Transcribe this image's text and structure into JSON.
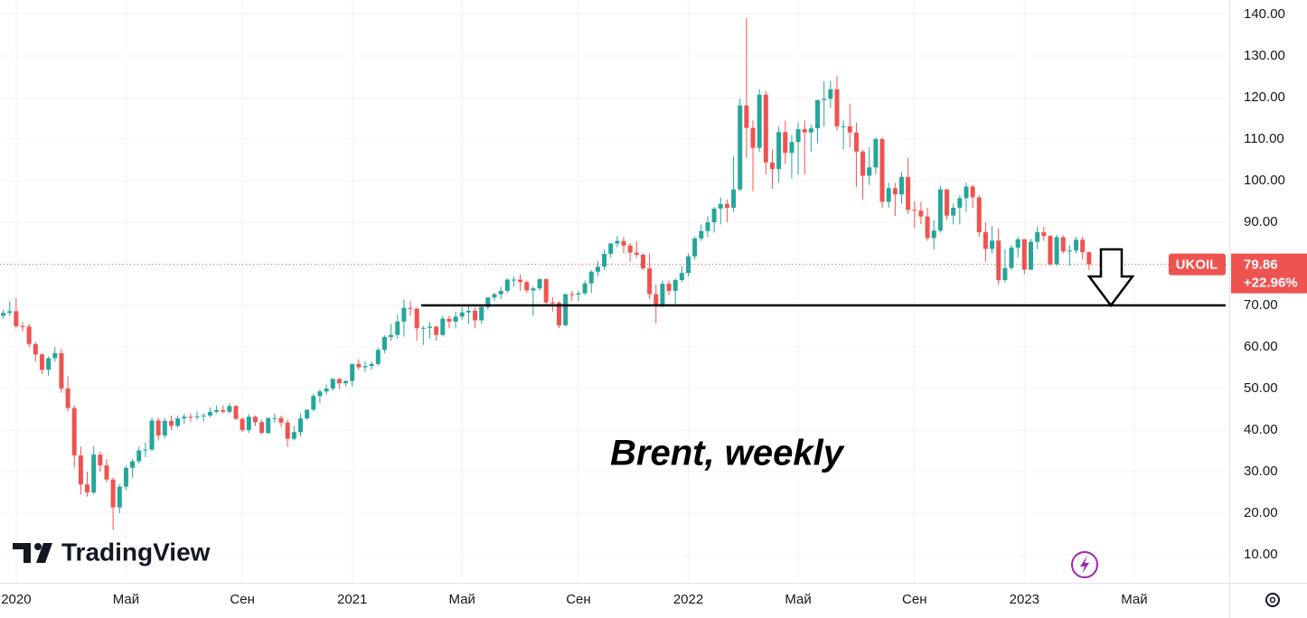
{
  "chart_data": {
    "type": "candlestick",
    "title": "Brent, weekly",
    "brand": "TradingView",
    "symbol": "UKOIL",
    "last_price": 79.86,
    "change_label": "+22.96%",
    "support_level": 70,
    "up_color": "#26a69a",
    "down_color": "#ef5350",
    "grid": true,
    "xlim": [
      -0.5,
      189.7
    ],
    "ylim": [
      3.26,
      143.48
    ],
    "xticks": [
      {
        "value": 2,
        "label": "2020"
      },
      {
        "value": 19,
        "label": "Май"
      },
      {
        "value": 37,
        "label": "Сен"
      },
      {
        "value": 54,
        "label": "2021"
      },
      {
        "value": 71,
        "label": "Май"
      },
      {
        "value": 89,
        "label": "Сен"
      },
      {
        "value": 106,
        "label": "2022"
      },
      {
        "value": 123,
        "label": "Май"
      },
      {
        "value": 141,
        "label": "Сен"
      },
      {
        "value": 158,
        "label": "2023"
      },
      {
        "value": 175,
        "label": "Май"
      }
    ],
    "yticks": [
      {
        "value": 140,
        "label": "140.00"
      },
      {
        "value": 130,
        "label": "130.00"
      },
      {
        "value": 120,
        "label": "120.00"
      },
      {
        "value": 110,
        "label": "110.00"
      },
      {
        "value": 100,
        "label": "100.00"
      },
      {
        "value": 90,
        "label": "90.00"
      },
      {
        "value": 80,
        "label": "80.00"
      },
      {
        "value": 70,
        "label": "70.00"
      },
      {
        "value": 60,
        "label": "60.00"
      },
      {
        "value": 50,
        "label": "50.00"
      },
      {
        "value": 40,
        "label": "40.00"
      },
      {
        "value": 30,
        "label": "30.00"
      },
      {
        "value": 20,
        "label": "20.00"
      },
      {
        "value": 10,
        "label": "10.00"
      }
    ],
    "open": [
      67.5,
      68.2,
      68.6,
      65.0,
      64.9,
      60.7,
      58.2,
      54.5,
      57.3,
      58.5,
      50.0,
      45.3,
      33.9,
      26.9,
      25.0,
      34.1,
      31.5,
      28.1,
      21.4,
      26.4,
      30.9,
      32.5,
      35.1,
      35.3,
      42.3,
      38.7,
      42.2,
      41.0,
      42.8,
      43.2,
      43.1,
      43.3,
      43.5,
      44.4,
      44.8,
      44.4,
      45.8,
      42.7,
      40.0,
      43.2,
      41.9,
      39.3,
      42.9,
      42.9,
      41.8,
      37.9,
      39.5,
      42.8,
      44.9,
      48.2,
      49.3,
      50.0,
      52.3,
      51.3,
      51.8,
      55.9,
      55.1,
      55.4,
      55.9,
      59.3,
      62.4,
      62.9,
      66.1,
      69.4,
      69.2,
      64.5,
      64.6,
      64.9,
      62.9,
      66.8,
      66.1,
      67.3,
      68.3,
      68.7,
      66.4,
      69.6,
      71.9,
      72.7,
      73.5,
      76.2,
      76.2,
      75.6,
      73.6,
      74.1,
      76.3,
      70.7,
      70.6,
      65.2,
      72.7,
      72.6,
      72.9,
      75.3,
      78.1,
      79.3,
      82.4,
      84.9,
      85.5,
      84.4,
      82.7,
      82.2,
      78.9,
      72.7,
      69.9,
      75.2,
      73.5,
      76.1,
      77.8,
      81.8,
      86.1,
      87.9,
      90.0,
      93.3,
      94.4,
      93.5,
      97.9,
      118.1,
      112.7,
      107.9,
      120.7,
      104.4,
      102.8,
      111.7,
      106.7,
      109.3,
      112.4,
      111.6,
      112.6,
      119.4,
      119.7,
      122.0,
      113.1,
      113.1,
      111.6,
      107.0,
      101.2,
      103.2,
      110.0,
      94.9,
      98.2,
      96.7,
      100.9,
      93.0,
      92.8,
      91.4,
      86.2,
      88.0,
      97.9,
      91.6,
      93.5,
      95.8,
      98.6,
      96.0,
      87.6,
      83.6,
      85.6,
      76.1,
      79.0,
      83.9,
      85.9,
      78.6,
      85.3,
      87.6,
      86.7,
      79.9,
      86.4,
      83.0,
      83.2,
      85.8,
      82.8
    ],
    "high": [
      69.0,
      71.0,
      71.8,
      66.0,
      65.5,
      61.0,
      58.5,
      57.8,
      60.0,
      59.5,
      53.0,
      46.0,
      36.0,
      30.0,
      36.0,
      34.8,
      33.0,
      28.5,
      27.0,
      31.5,
      33.0,
      36.0,
      37.0,
      43.0,
      43.0,
      43.0,
      43.5,
      43.5,
      43.9,
      44.0,
      44.5,
      44.0,
      45.5,
      45.9,
      46.0,
      46.5,
      46.0,
      43.0,
      43.9,
      43.5,
      42.5,
      43.0,
      43.9,
      43.5,
      42.5,
      41.0,
      44.0,
      45.0,
      48.8,
      49.8,
      51.0,
      52.5,
      52.5,
      52.0,
      56.0,
      57.0,
      56.5,
      56.5,
      59.8,
      62.8,
      65.5,
      67.7,
      71.4,
      71.0,
      69.5,
      65.0,
      66.0,
      65.0,
      67.5,
      67.5,
      68.5,
      69.5,
      69.8,
      69.5,
      70.0,
      72.0,
      73.0,
      74.5,
      76.5,
      77.0,
      77.5,
      76.0,
      74.5,
      76.5,
      76.5,
      72.0,
      71.0,
      72.8,
      73.5,
      73.5,
      76.0,
      78.5,
      80.7,
      83.5,
      85.0,
      86.7,
      86.5,
      85.0,
      85.5,
      82.5,
      82.5,
      75.0,
      76.0,
      76.0,
      76.5,
      79.5,
      82.5,
      86.5,
      89.5,
      91.5,
      93.7,
      96.0,
      95.5,
      105.8,
      119.8,
      139.1,
      114.5,
      122.0,
      121.5,
      107.5,
      113.0,
      114.5,
      111.0,
      114.0,
      114.5,
      113.5,
      119.5,
      124.0,
      124.0,
      125.2,
      114.5,
      118.5,
      114.0,
      107.5,
      108.0,
      110.5,
      110.5,
      99.5,
      99.5,
      102.0,
      105.5,
      95.0,
      95.0,
      93.5,
      90.5,
      98.8,
      98.0,
      94.5,
      96.5,
      99.5,
      99.0,
      96.5,
      90.0,
      89.0,
      88.5,
      83.5,
      84.5,
      86.5,
      86.0,
      86.0,
      89.0,
      89.0,
      87.0,
      87.0,
      86.9,
      84.5,
      86.5,
      86.5,
      83.0
    ],
    "low": [
      66.8,
      67.5,
      64.5,
      63.8,
      60.0,
      56.5,
      53.5,
      53.0,
      56.5,
      49.0,
      44.5,
      31.0,
      24.5,
      24.0,
      24.5,
      30.0,
      27.5,
      15.98,
      20.0,
      25.5,
      28.5,
      32.0,
      33.5,
      35.0,
      37.5,
      38.0,
      40.0,
      40.5,
      41.5,
      42.0,
      42.5,
      42.0,
      43.0,
      44.0,
      44.0,
      44.0,
      42.5,
      39.5,
      39.3,
      41.0,
      39.0,
      39.0,
      41.8,
      40.6,
      36.0,
      37.5,
      38.5,
      42.5,
      44.5,
      46.5,
      48.5,
      49.5,
      49.8,
      50.5,
      50.5,
      54.5,
      54.0,
      54.5,
      55.5,
      58.5,
      61.5,
      62.0,
      62.5,
      67.5,
      61.5,
      60.5,
      62.0,
      61.5,
      62.5,
      64.5,
      64.5,
      66.5,
      65.5,
      64.5,
      65.5,
      69.0,
      71.0,
      71.5,
      73.0,
      74.5,
      73.5,
      73.0,
      67.5,
      73.5,
      70.0,
      68.5,
      64.5,
      65.0,
      71.0,
      71.0,
      72.5,
      73.0,
      77.0,
      78.5,
      81.5,
      84.0,
      82.5,
      80.5,
      81.5,
      78.5,
      71.5,
      65.7,
      69.5,
      72.5,
      70.0,
      75.5,
      77.0,
      81.0,
      85.5,
      86.5,
      87.5,
      89.5,
      90.0,
      92.5,
      97.5,
      105.5,
      97.5,
      107.0,
      101.5,
      98.0,
      99.5,
      104.0,
      100.5,
      101.5,
      101.5,
      107.0,
      109.0,
      113.0,
      117.5,
      112.0,
      107.5,
      108.0,
      98.5,
      95.5,
      99.0,
      101.5,
      93.5,
      93.5,
      91.5,
      94.5,
      92.0,
      88.5,
      89.5,
      85.5,
      83.5,
      87.5,
      90.5,
      89.5,
      89.5,
      92.5,
      93.5,
      86.5,
      80.5,
      82.5,
      75.0,
      75.5,
      78.5,
      81.5,
      77.5,
      78.5,
      83.5,
      85.5,
      79.5,
      79.5,
      82.5,
      79.5,
      82.5,
      81.0,
      78.5
    ],
    "close": [
      68.2,
      68.6,
      65.0,
      64.9,
      60.7,
      58.2,
      54.5,
      57.3,
      58.5,
      50.0,
      45.3,
      33.9,
      26.9,
      25.0,
      34.1,
      31.5,
      28.1,
      21.4,
      26.4,
      30.9,
      32.5,
      35.1,
      35.3,
      42.3,
      38.7,
      42.2,
      41.0,
      42.8,
      43.2,
      43.1,
      43.3,
      43.5,
      44.4,
      44.8,
      44.4,
      45.8,
      42.7,
      40.0,
      43.2,
      41.9,
      39.3,
      42.9,
      42.9,
      41.8,
      37.9,
      39.5,
      42.8,
      44.9,
      48.2,
      49.3,
      50.0,
      52.3,
      51.3,
      51.8,
      55.9,
      55.1,
      55.4,
      55.9,
      59.3,
      62.4,
      62.9,
      66.1,
      69.4,
      69.2,
      64.5,
      64.6,
      64.9,
      62.9,
      66.8,
      66.1,
      67.3,
      68.3,
      68.7,
      66.4,
      69.6,
      71.9,
      72.7,
      73.5,
      76.2,
      76.2,
      75.6,
      73.6,
      74.1,
      76.3,
      70.7,
      70.6,
      65.2,
      72.7,
      72.6,
      72.9,
      75.3,
      78.1,
      79.3,
      82.4,
      84.9,
      85.5,
      84.4,
      82.7,
      82.2,
      78.9,
      72.7,
      69.9,
      75.2,
      73.5,
      76.1,
      77.8,
      81.8,
      86.1,
      87.9,
      90.0,
      93.3,
      94.4,
      93.5,
      97.9,
      118.1,
      112.7,
      107.9,
      120.7,
      104.4,
      102.8,
      111.7,
      106.7,
      109.3,
      112.4,
      111.6,
      112.6,
      119.4,
      119.7,
      122.0,
      113.1,
      113.1,
      111.6,
      107.0,
      101.2,
      103.2,
      110.0,
      94.9,
      98.2,
      96.7,
      100.9,
      93.0,
      92.8,
      91.4,
      86.2,
      88.0,
      97.9,
      91.6,
      93.5,
      95.8,
      98.6,
      96.0,
      87.6,
      83.6,
      85.6,
      76.1,
      79.0,
      83.9,
      85.9,
      78.6,
      85.3,
      87.6,
      86.7,
      79.9,
      86.4,
      83.0,
      83.2,
      85.8,
      82.8,
      79.86
    ]
  }
}
